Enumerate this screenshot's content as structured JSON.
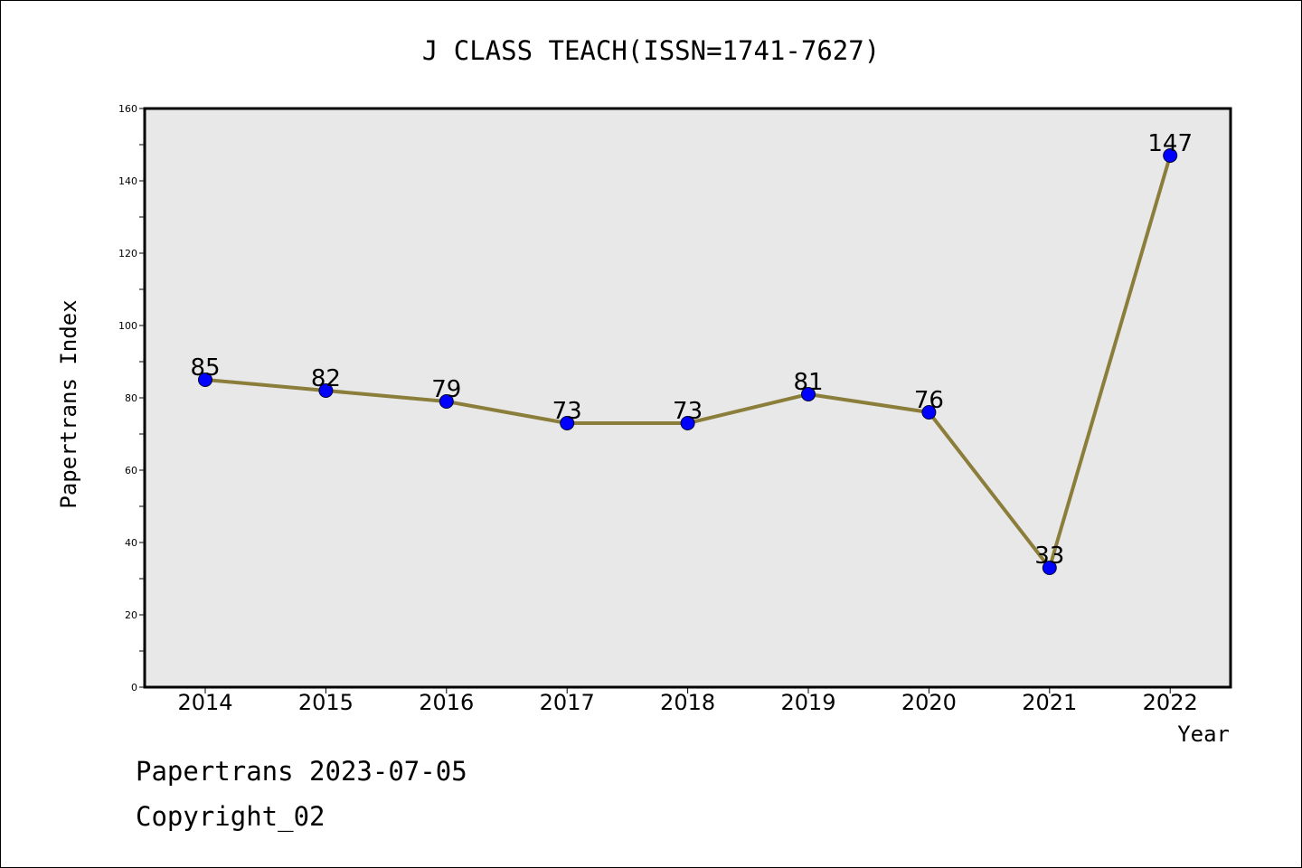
{
  "chart_data": {
    "type": "line",
    "title": "J CLASS TEACH(ISSN=1741-7627)",
    "xlabel": "Year",
    "ylabel": "Papertrans Index",
    "categories": [
      "2014",
      "2015",
      "2016",
      "2017",
      "2018",
      "2019",
      "2020",
      "2021",
      "2022"
    ],
    "values": [
      85,
      82,
      79,
      73,
      73,
      81,
      76,
      33,
      147
    ],
    "data_labels": [
      "85",
      "82",
      "79",
      "73",
      "73",
      "81",
      "76",
      "33",
      "147"
    ],
    "ylim": [
      0,
      160
    ],
    "yticks": [
      0,
      20,
      40,
      60,
      80,
      100,
      120,
      140,
      160
    ],
    "ytick_labels": [
      "0",
      "20",
      "40",
      "60",
      "80",
      "100",
      "120",
      "140",
      "160"
    ],
    "grid": false,
    "legend": "none",
    "colors": {
      "line": "#8B7D3A",
      "marker": "#0000FF",
      "plot_background": "#E8E8E8"
    }
  },
  "footer": {
    "date_text": "Papertrans 2023-07-05",
    "copyright_text": "Copyright_02"
  }
}
